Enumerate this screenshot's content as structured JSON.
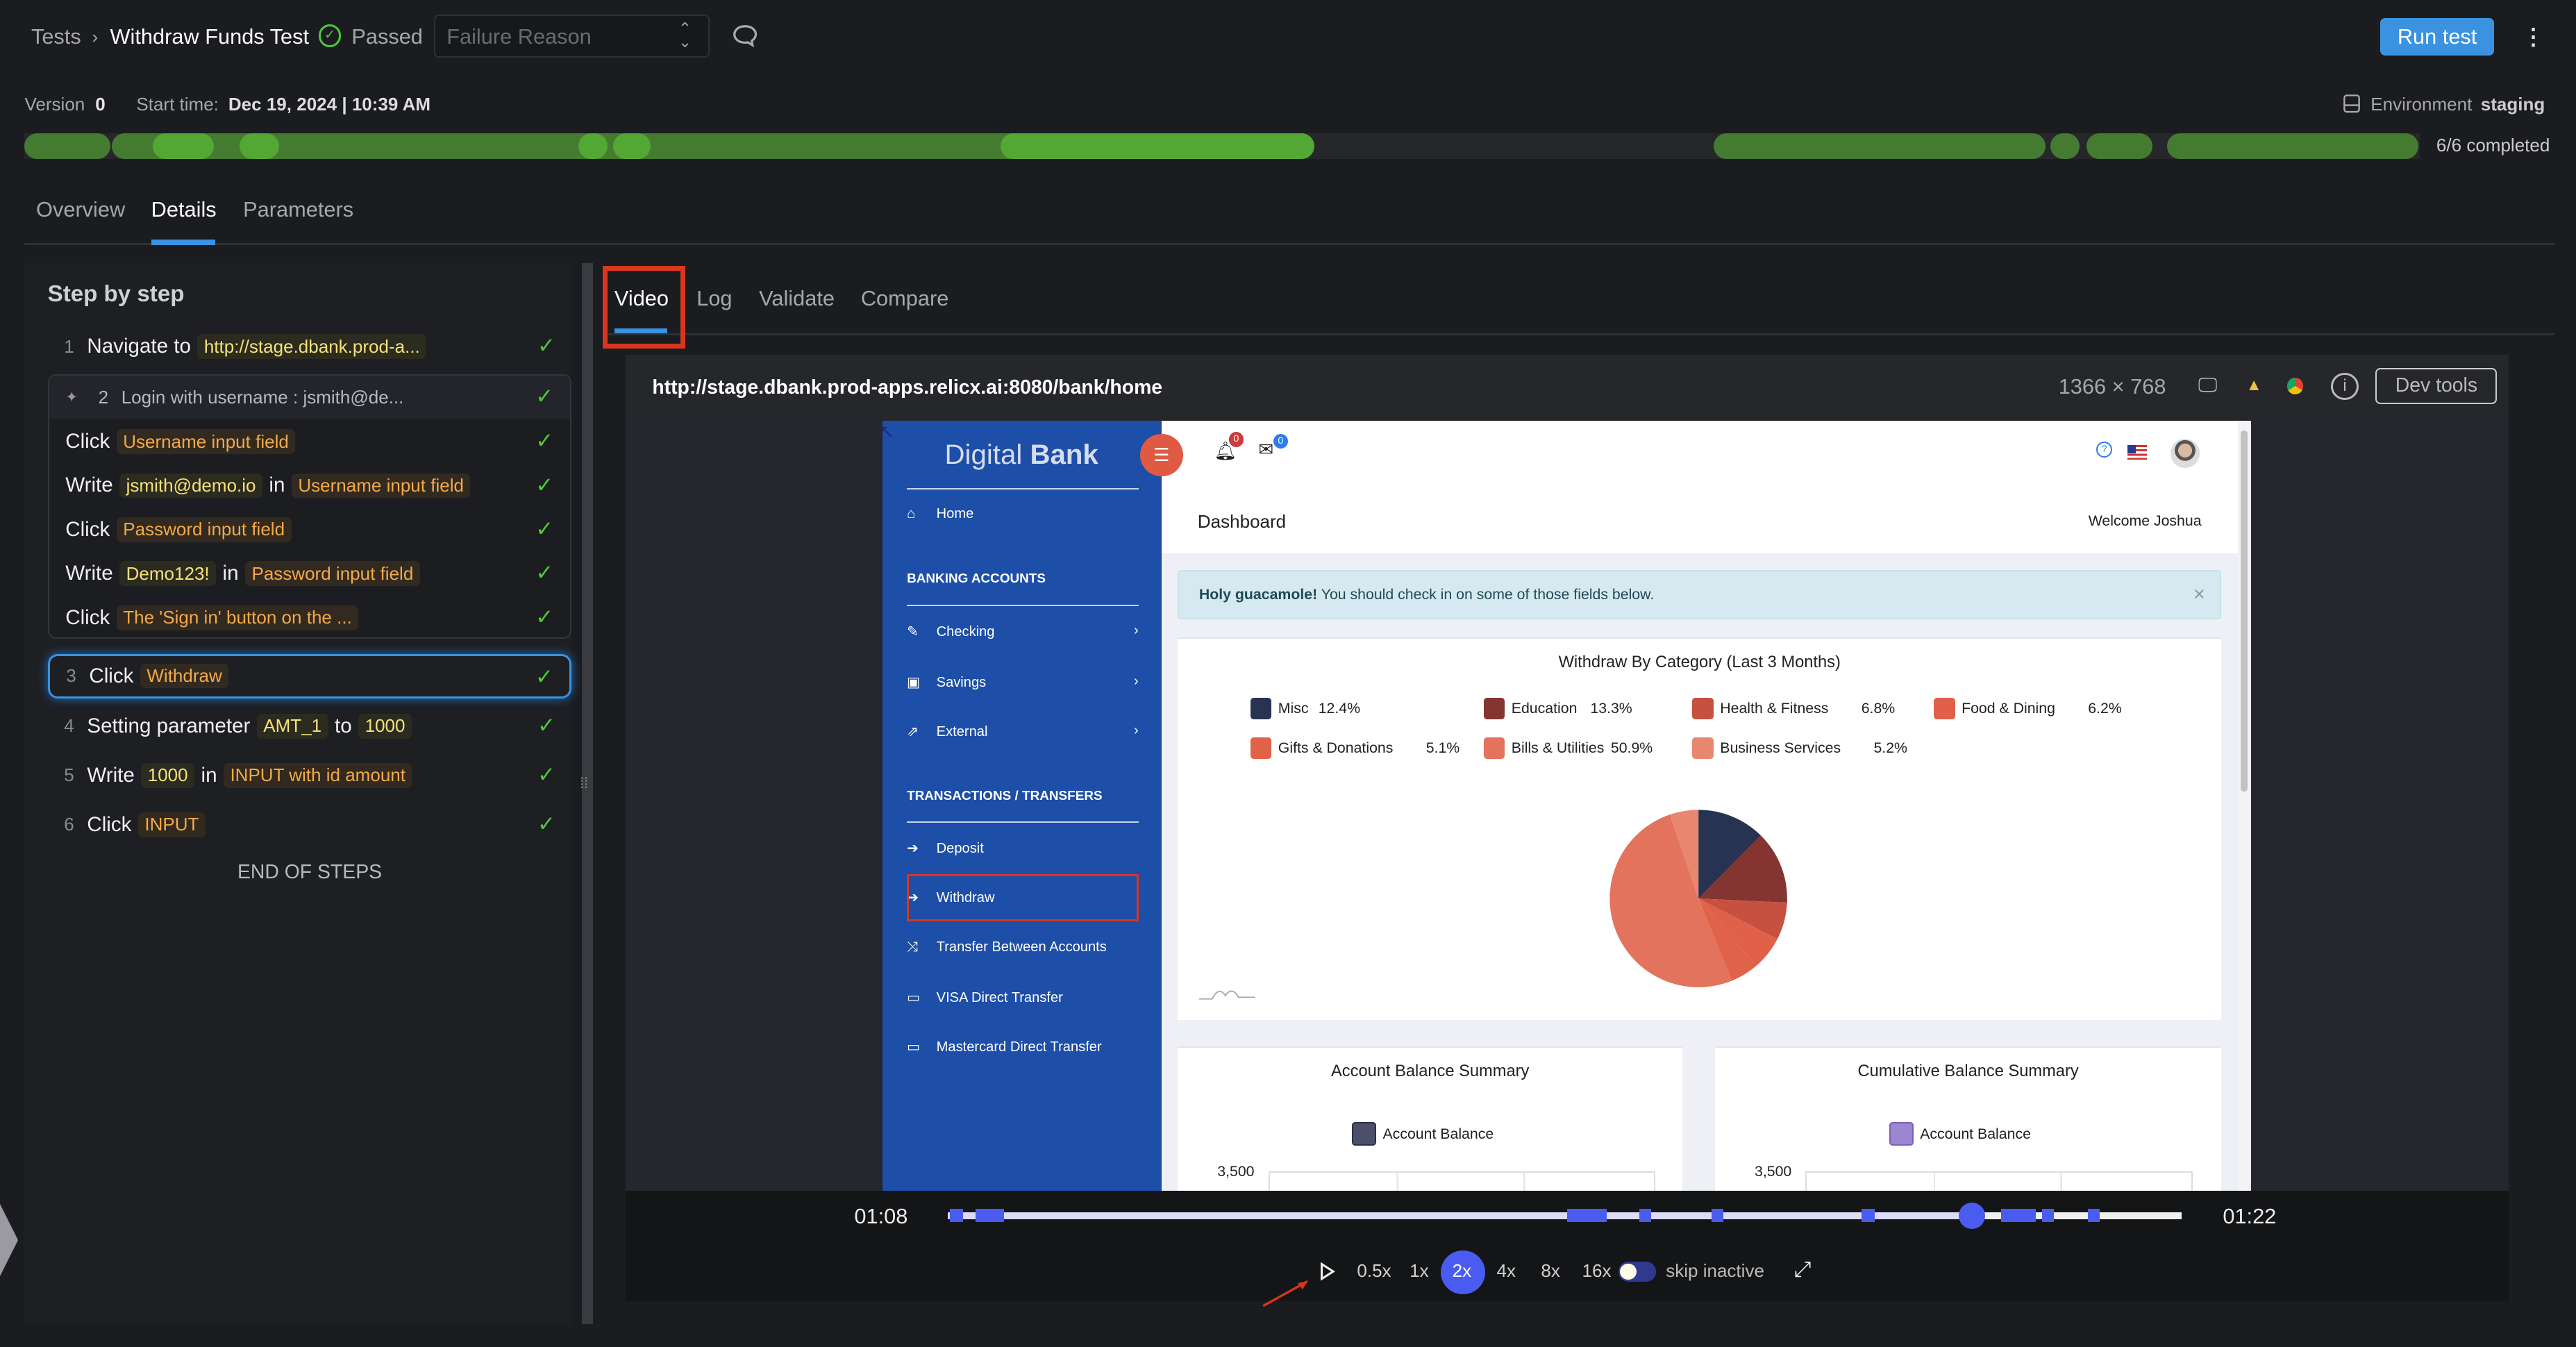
{
  "header": {
    "breadcrumb_root": "Tests",
    "breadcrumb_sep": "›",
    "test_name": "Withdraw Funds Test",
    "status": "Passed",
    "failure_reason_placeholder": "Failure Reason",
    "run_button": "Run test",
    "status_color": "#4cc93a",
    "accent_color": "#3a92e0"
  },
  "meta": {
    "version_label": "Version",
    "version": "0",
    "start_label": "Start time:",
    "start_value": "Dec 19, 2024 | 10:39 AM",
    "environment_label": "Environment",
    "environment": "staging",
    "completed": "6/6 completed"
  },
  "main_tabs": [
    "Overview",
    "Details",
    "Parameters"
  ],
  "main_tab_active": "Details",
  "steps_panel": {
    "title": "Step by step",
    "end_label": "END OF STEPS",
    "steps": [
      {
        "num": "1",
        "parts": [
          {
            "t": "text",
            "text": "Navigate to"
          },
          {
            "t": "value",
            "text": "http://stage.dbank.prod-a..."
          }
        ]
      },
      {
        "num": "2",
        "group_title": "Login with username : jsmith@de...",
        "substeps": [
          {
            "parts": [
              {
                "t": "text",
                "text": "Click"
              },
              {
                "t": "element",
                "text": "Username input field"
              }
            ]
          },
          {
            "parts": [
              {
                "t": "text",
                "text": "Write"
              },
              {
                "t": "value",
                "text": "jsmith@demo.io"
              },
              {
                "t": "text",
                "text": "in"
              },
              {
                "t": "element",
                "text": "Username input field"
              }
            ]
          },
          {
            "parts": [
              {
                "t": "text",
                "text": "Click"
              },
              {
                "t": "element",
                "text": "Password input field"
              }
            ]
          },
          {
            "parts": [
              {
                "t": "text",
                "text": "Write"
              },
              {
                "t": "value",
                "text": "Demo123!"
              },
              {
                "t": "text",
                "text": "in"
              },
              {
                "t": "element",
                "text": "Password input field"
              }
            ]
          },
          {
            "parts": [
              {
                "t": "text",
                "text": "Click"
              },
              {
                "t": "element",
                "text": "The 'Sign in' button on the ..."
              }
            ]
          }
        ]
      },
      {
        "num": "3",
        "selected": true,
        "parts": [
          {
            "t": "text",
            "text": "Click"
          },
          {
            "t": "element",
            "text": "Withdraw"
          }
        ]
      },
      {
        "num": "4",
        "parts": [
          {
            "t": "text",
            "text": "Setting parameter"
          },
          {
            "t": "value",
            "text": "AMT_1"
          },
          {
            "t": "text",
            "text": "to"
          },
          {
            "t": "value",
            "text": "1000"
          }
        ]
      },
      {
        "num": "5",
        "parts": [
          {
            "t": "text",
            "text": "Write"
          },
          {
            "t": "value",
            "text": "1000"
          },
          {
            "t": "text",
            "text": "in"
          },
          {
            "t": "element",
            "text": "INPUT with id amount"
          }
        ]
      },
      {
        "num": "6",
        "parts": [
          {
            "t": "text",
            "text": "Click"
          },
          {
            "t": "element",
            "text": "INPUT"
          }
        ]
      }
    ]
  },
  "viewer_tabs": [
    "Video",
    "Log",
    "Validate",
    "Compare"
  ],
  "viewer_tab_active": "Video",
  "url_bar": {
    "url": "http://stage.dbank.prod-apps.relicx.ai:8080/bank/home",
    "resolution": "1366 × 768",
    "dev_tools": "Dev tools"
  },
  "bank_app": {
    "brand_light": "Digital",
    "brand_bold": "Bank",
    "notif_count": "0",
    "mail_count": "0",
    "sidebar": {
      "home": "Home",
      "banking_header": "BANKING ACCOUNTS",
      "banking_items": [
        "Checking",
        "Savings",
        "External"
      ],
      "transactions_header": "TRANSACTIONS / TRANSFERS",
      "transaction_items": [
        "Deposit",
        "Withdraw",
        "Transfer Between Accounts",
        "VISA Direct Transfer",
        "Mastercard Direct Transfer"
      ],
      "highlighted": "Withdraw",
      "color": "#1d4ea8"
    },
    "page_title": "Dashboard",
    "welcome": "Welcome Joshua",
    "alert_bold": "Holy guacamole!",
    "alert_text": "You should check in on some of those fields below.",
    "alert_close": "×",
    "account_balance_title": "Account Balance Summary",
    "cumulative_title": "Cumulative Balance Summary",
    "balance_legend": "Account Balance",
    "balance_tick": "3,500",
    "balance_legend_colors": [
      "#4a5068",
      "#9b86cf"
    ]
  },
  "chart_data": {
    "type": "pie",
    "title": "Withdraw By Category (Last 3 Months)",
    "legend": "top",
    "slices": [
      {
        "label": "Misc",
        "value": 12.4,
        "display": "12.4%",
        "color": "#273350"
      },
      {
        "label": "Education",
        "value": 13.3,
        "display": "13.3%",
        "color": "#843431"
      },
      {
        "label": "Health & Fitness",
        "value": 6.8,
        "display": "6.8%",
        "color": "#c75140"
      },
      {
        "label": "Food & Dining",
        "value": 6.2,
        "display": "6.2%",
        "color": "#e0604a"
      },
      {
        "label": "Gifts & Donations",
        "value": 5.1,
        "display": "5.1%",
        "color": "#e06248"
      },
      {
        "label": "Bills & Utilities",
        "value": 50.9,
        "display": "50.9%",
        "color": "#e4735d"
      },
      {
        "label": "Business Services",
        "value": 5.2,
        "display": "5.2%",
        "color": "#e8876f"
      }
    ]
  },
  "player": {
    "current_time": "01:08",
    "end_time": "01:22",
    "progress": 0.83,
    "speeds": [
      "0.5x",
      "1x",
      "2x",
      "4x",
      "8x",
      "16x"
    ],
    "active_speed": "2x",
    "skip_inactive_label": "skip inactive",
    "skip_inactive": true,
    "accent_color": "#4a5cf0"
  }
}
